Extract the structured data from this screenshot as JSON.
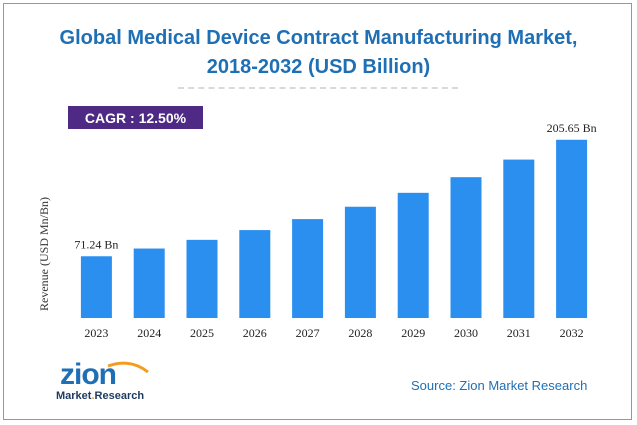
{
  "title": {
    "line1": "Global Medical Device Contract Manufacturing Market,",
    "line2": "2018-2032 (USD Billion)"
  },
  "cagr": {
    "text": "CAGR :  12.50%"
  },
  "colors": {
    "title": "#1f6fb5",
    "bar": "#2b8ff0",
    "badge": "#4e2a84",
    "source": "#1f6fb5",
    "frame": "#5aa9d6",
    "logo_blue": "#1f6fb5",
    "logo_orange": "#f39c1f"
  },
  "chart_data": {
    "type": "bar",
    "title": "Global Medical Device Contract Manufacturing Market, 2018-2032 (USD Billion)",
    "xlabel": "",
    "ylabel": "Revenue (USD Mn/Bn)",
    "categories": [
      "2023",
      "2024",
      "2025",
      "2026",
      "2027",
      "2028",
      "2029",
      "2030",
      "2031",
      "2032"
    ],
    "values": [
      71.24,
      80.15,
      90.17,
      101.44,
      114.12,
      128.38,
      144.43,
      162.48,
      182.79,
      205.65
    ],
    "data_labels": [
      {
        "index": 0,
        "text": "71.24 Bn"
      },
      {
        "index": 9,
        "text": "205.65 Bn"
      }
    ],
    "ylim": [
      0,
      240
    ],
    "grid": false,
    "legend": "none"
  },
  "logo": {
    "word": "zion",
    "sub_left": "Market",
    "sub_right": "Research"
  },
  "source": {
    "text": "Source: Zion Market Research"
  }
}
